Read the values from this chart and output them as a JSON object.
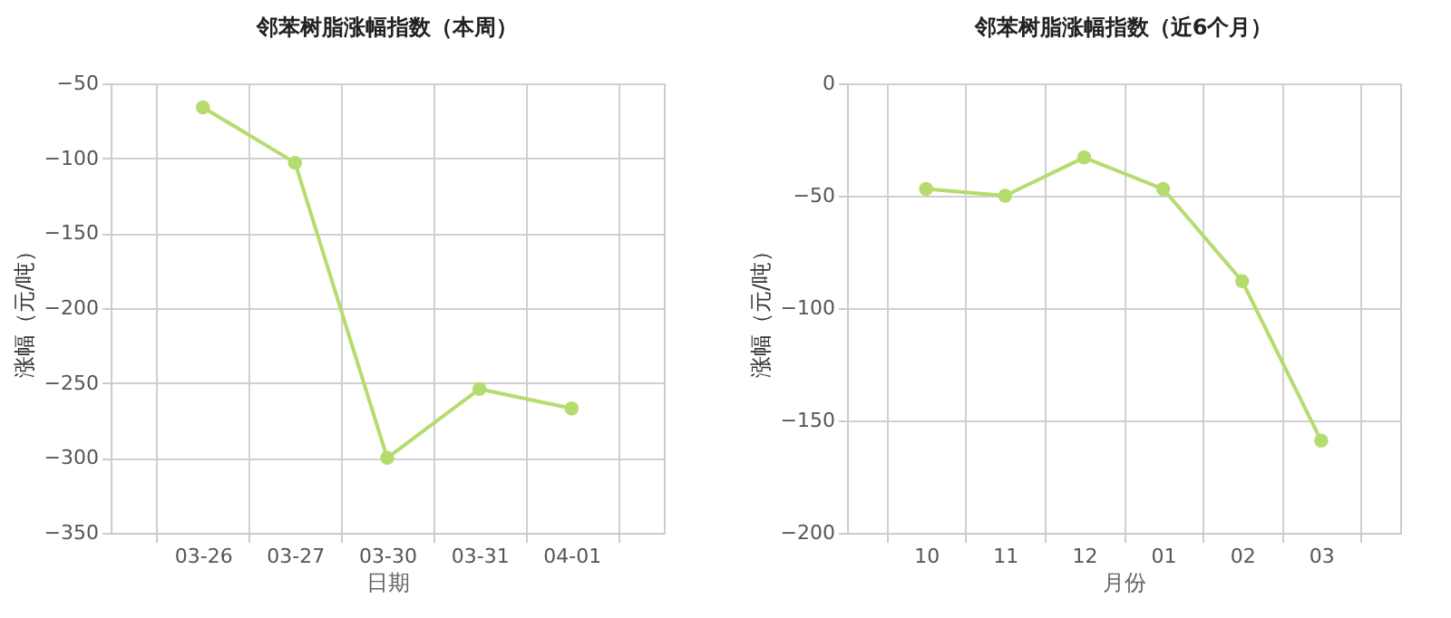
{
  "chart_data": [
    {
      "type": "line",
      "title": "邻苯树脂涨幅指数（本周）",
      "xlabel": "日期",
      "ylabel": "涨幅（元/吨）",
      "categories": [
        "03-26",
        "03-27",
        "03-30",
        "03-31",
        "04-01"
      ],
      "series": [
        {
          "color": "#b5dc6e",
          "values": [
            -66,
            -103,
            -300,
            -254,
            -267
          ]
        }
      ],
      "ylim": [
        -350,
        -50
      ],
      "yticks": [
        -350,
        -300,
        -250,
        -200,
        -150,
        -100,
        -50
      ],
      "grid": true,
      "marker": "circle",
      "legend": false
    },
    {
      "type": "line",
      "title": "邻苯树脂涨幅指数（近6个月）",
      "xlabel": "月份",
      "ylabel": "涨幅（元/吨）",
      "categories": [
        "10",
        "11",
        "12",
        "01",
        "02",
        "03"
      ],
      "series": [
        {
          "color": "#b5dc6e",
          "values": [
            -47,
            -50,
            -33,
            -47,
            -88,
            -159
          ]
        }
      ],
      "ylim": [
        -200,
        0
      ],
      "yticks": [
        -200,
        -150,
        -100,
        -50,
        0
      ],
      "grid": true,
      "marker": "circle",
      "legend": false
    }
  ]
}
